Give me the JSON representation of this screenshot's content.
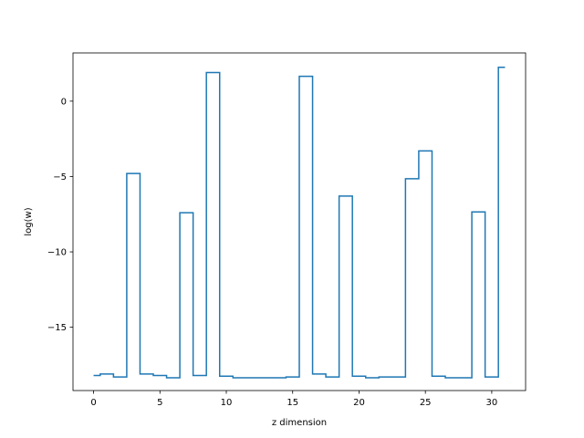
{
  "chart_data": {
    "type": "line",
    "drawstyle": "steps-mid",
    "title": "",
    "xlabel": "z dimension",
    "ylabel": "log(w)",
    "xlim": [
      -1.55,
      32.55
    ],
    "ylim": [
      -19.2,
      3.2
    ],
    "xticks": [
      0,
      5,
      10,
      15,
      20,
      25,
      30
    ],
    "xtick_labels": [
      "0",
      "5",
      "10",
      "15",
      "20",
      "25",
      "30"
    ],
    "yticks": [
      0,
      -5,
      -10,
      -15
    ],
    "ytick_labels": [
      "0",
      "−5",
      "−10",
      "−15"
    ],
    "grid": false,
    "series": [
      {
        "color": "#1f77b4",
        "x": [
          0,
          1,
          2,
          3,
          4,
          5,
          6,
          7,
          8,
          9,
          10,
          11,
          12,
          13,
          14,
          15,
          16,
          17,
          18,
          19,
          20,
          21,
          22,
          23,
          24,
          25,
          26,
          27,
          28,
          29,
          30,
          31
        ],
        "values": [
          -18.2,
          -18.1,
          -18.3,
          -4.8,
          -18.1,
          -18.2,
          -18.35,
          -7.4,
          -18.2,
          1.9,
          -18.25,
          -18.35,
          -18.35,
          -18.35,
          -18.35,
          -18.3,
          1.65,
          -18.1,
          -18.3,
          -6.3,
          -18.25,
          -18.35,
          -18.3,
          -18.3,
          -5.15,
          -3.3,
          -18.25,
          -18.35,
          -18.35,
          -7.35,
          -18.3,
          2.25
        ]
      }
    ]
  }
}
